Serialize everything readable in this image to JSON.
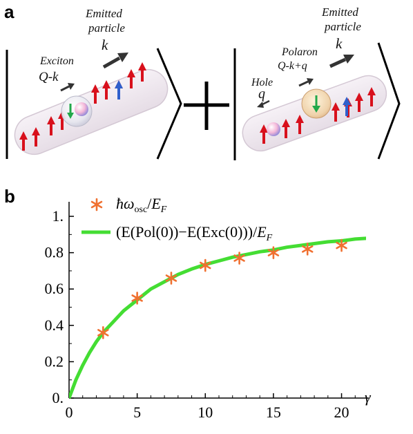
{
  "panel_a": {
    "letter": "a",
    "left_state": {
      "emitted_label": [
        "Emitted",
        "particle"
      ],
      "emitted_momentum": "k",
      "exciton_label": "Exciton",
      "exciton_momentum": "Q-k"
    },
    "operator": "+",
    "right_state": {
      "emitted_label": [
        "Emitted",
        "particle"
      ],
      "emitted_momentum": "k",
      "polaron_label": "Polaron",
      "polaron_momentum": "Q-k+q",
      "hole_label": "Hole",
      "hole_momentum": "q"
    },
    "colors": {
      "spin_up": "#d8101c",
      "spin_blue": "#2e5fcc",
      "impurity_green": "#22a84a",
      "arrow_dark": "#333333"
    }
  },
  "panel_b": {
    "letter": "b",
    "chart_data": {
      "type": "scatter",
      "x_axis_label": "γ",
      "xlim": [
        0,
        22
      ],
      "ylim": [
        0,
        1.08
      ],
      "x_ticks": [
        0,
        5,
        10,
        15,
        20
      ],
      "x_tick_labels": [
        "0",
        "5",
        "10",
        "15",
        "20"
      ],
      "y_ticks": [
        0,
        0.2,
        0.4,
        0.6,
        0.8,
        1.0
      ],
      "y_tick_labels": [
        "0.",
        "0.2",
        "0.4",
        "0.6",
        "0.8",
        "1."
      ],
      "legend_placement": "top-left",
      "series": [
        {
          "name": "ħω_osc/E_F",
          "marker": "asterisk",
          "color": "#f07030",
          "x": [
            2.5,
            5,
            7.5,
            10,
            12.5,
            15,
            17.5,
            20
          ],
          "y": [
            0.36,
            0.55,
            0.66,
            0.73,
            0.77,
            0.8,
            0.82,
            0.84
          ]
        },
        {
          "name": "(E(Pol(0))−E(Exc(0)))/E_F",
          "marker": "line",
          "color": "#44dd33",
          "x": [
            0,
            0.5,
            1,
            1.5,
            2,
            2.5,
            3,
            4,
            5,
            6,
            7,
            8,
            9,
            10,
            11,
            12,
            13,
            14,
            15,
            16,
            17,
            18,
            19,
            20,
            21,
            22
          ],
          "y": [
            0.0,
            0.1,
            0.18,
            0.25,
            0.31,
            0.36,
            0.4,
            0.48,
            0.54,
            0.6,
            0.64,
            0.68,
            0.71,
            0.735,
            0.755,
            0.775,
            0.79,
            0.805,
            0.815,
            0.83,
            0.84,
            0.85,
            0.86,
            0.865,
            0.875,
            0.88
          ]
        }
      ]
    }
  }
}
